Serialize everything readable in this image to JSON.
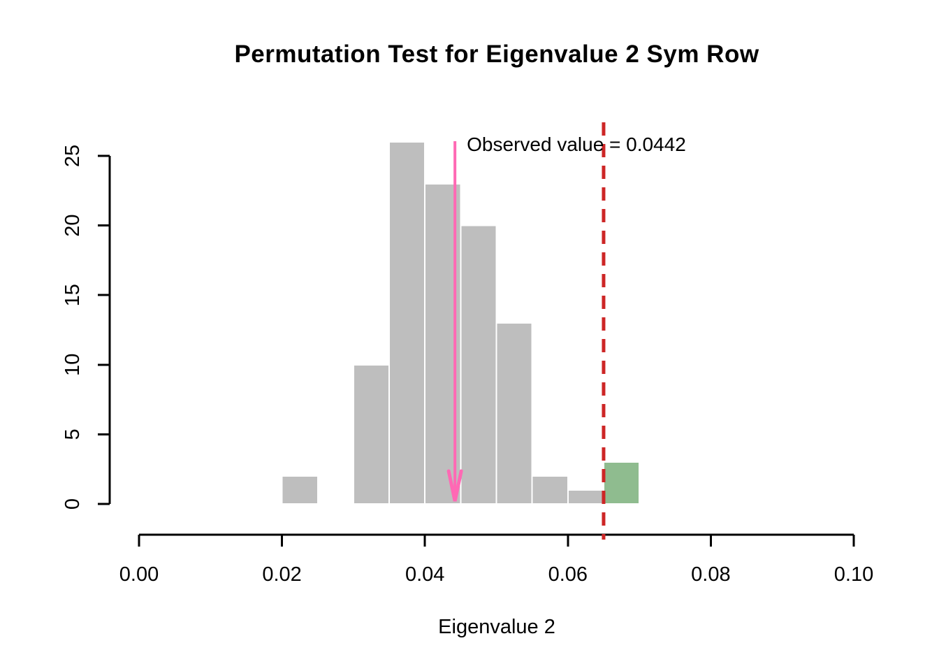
{
  "chart_data": {
    "type": "bar",
    "subtype": "histogram",
    "title": "Permutation Test for Eigenvalue 2 Sym Row",
    "xlabel": "Eigenvalue 2",
    "ylabel": "",
    "xlim": [
      0.0,
      0.1
    ],
    "ylim": [
      0,
      25
    ],
    "grid": false,
    "legend": null,
    "x_ticks": [
      0.0,
      0.02,
      0.04,
      0.06,
      0.08,
      0.1
    ],
    "x_tick_labels": [
      "0.00",
      "0.02",
      "0.04",
      "0.06",
      "0.08",
      "0.10"
    ],
    "y_ticks": [
      0,
      5,
      10,
      15,
      20,
      25
    ],
    "y_tick_labels": [
      "0",
      "5",
      "10",
      "15",
      "20",
      "25"
    ],
    "bin_width": 0.005,
    "bins": [
      {
        "start": 0.02,
        "end": 0.025,
        "count": 2,
        "highlight": false
      },
      {
        "start": 0.025,
        "end": 0.03,
        "count": 0,
        "highlight": false
      },
      {
        "start": 0.03,
        "end": 0.035,
        "count": 10,
        "highlight": false
      },
      {
        "start": 0.035,
        "end": 0.04,
        "count": 26,
        "highlight": false
      },
      {
        "start": 0.04,
        "end": 0.045,
        "count": 23,
        "highlight": false
      },
      {
        "start": 0.045,
        "end": 0.05,
        "count": 20,
        "highlight": false
      },
      {
        "start": 0.05,
        "end": 0.055,
        "count": 13,
        "highlight": false
      },
      {
        "start": 0.055,
        "end": 0.06,
        "count": 2,
        "highlight": false
      },
      {
        "start": 0.06,
        "end": 0.065,
        "count": 1,
        "highlight": false
      },
      {
        "start": 0.065,
        "end": 0.07,
        "count": 3,
        "highlight": true
      }
    ],
    "observed_value": 0.0442,
    "observed_value_label": "Observed value = 0.0442",
    "threshold_line_x": 0.065,
    "colors": {
      "bar_fill": "#BEBEBE",
      "bar_border": "#FFFFFF",
      "highlight_fill": "#8FBC8F",
      "observed_arrow": "#FF69B4",
      "threshold_line": "#CD2626",
      "axis": "#000000",
      "background": "#FFFFFF"
    }
  }
}
